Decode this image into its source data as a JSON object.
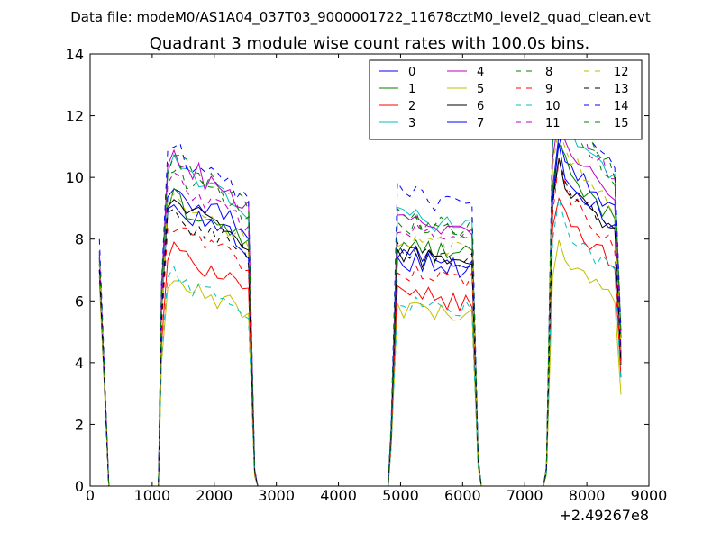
{
  "chart_data": {
    "type": "line",
    "suptitle": "Data file: modeM0/AS1A04_037T03_9000001722_11678cztM0_level2_quad_clean.evt",
    "title": "Quadrant 3 module wise count rates with 100.0s bins.",
    "xlabel": "",
    "ylabel": "",
    "x_offset_label": "+2.49267e8",
    "xlim": [
      0,
      9000
    ],
    "ylim": [
      0,
      14
    ],
    "xticks": [
      0,
      1000,
      2000,
      3000,
      4000,
      5000,
      6000,
      7000,
      8000,
      9000
    ],
    "xtick_labels": [
      "0",
      "1000",
      "2000",
      "3000",
      "4000",
      "5000",
      "6000",
      "7000",
      "8000",
      "9000"
    ],
    "yticks": [
      0,
      2,
      4,
      6,
      8,
      10,
      12,
      14
    ],
    "ytick_labels": [
      "0",
      "2",
      "4",
      "6",
      "8",
      "10",
      "12",
      "14"
    ],
    "legend_position": "top-right",
    "legend_columns": 4,
    "segments": [
      {
        "start": 150,
        "step": 100,
        "count": 2,
        "gap_before": false
      },
      {
        "start": 1150,
        "step": 100,
        "count": 16,
        "gap_before": true
      },
      {
        "start": 4850,
        "step": 100,
        "count": 15,
        "gap_before": true
      },
      {
        "start": 7350,
        "step": 100,
        "count": 13,
        "gap_before": true
      }
    ],
    "series": [
      {
        "name": "0",
        "color": "#0000ff",
        "dash": "solid",
        "levels": [
          7.5,
          9.5,
          7.6,
          10.8
        ]
      },
      {
        "name": "1",
        "color": "#008000",
        "dash": "solid",
        "levels": [
          7.3,
          9.0,
          7.8,
          10.5
        ]
      },
      {
        "name": "2",
        "color": "#ff0000",
        "dash": "solid",
        "levels": [
          6.8,
          7.4,
          6.2,
          8.8
        ]
      },
      {
        "name": "3",
        "color": "#00bfbf",
        "dash": "solid",
        "levels": [
          7.4,
          10.2,
          8.8,
          12.0
        ]
      },
      {
        "name": "4",
        "color": "#bf00bf",
        "dash": "solid",
        "levels": [
          7.6,
          10.4,
          8.6,
          11.2
        ]
      },
      {
        "name": "5",
        "color": "#bfbf00",
        "dash": "solid",
        "levels": [
          6.6,
          6.4,
          5.8,
          7.4
        ]
      },
      {
        "name": "6",
        "color": "#000000",
        "dash": "solid",
        "levels": [
          7.2,
          9.0,
          7.6,
          9.8
        ]
      },
      {
        "name": "7",
        "color": "#0000ff",
        "dash": "solid",
        "levels": [
          7.0,
          8.9,
          7.4,
          10.2
        ]
      },
      {
        "name": "8",
        "color": "#008000",
        "dash": "dashed",
        "levels": [
          7.4,
          10.0,
          8.6,
          12.0
        ]
      },
      {
        "name": "9",
        "color": "#ff0000",
        "dash": "dashed",
        "levels": [
          7.0,
          8.2,
          7.0,
          9.6
        ]
      },
      {
        "name": "10",
        "color": "#00bfbf",
        "dash": "dashed",
        "levels": [
          7.0,
          6.6,
          6.0,
          8.4
        ]
      },
      {
        "name": "11",
        "color": "#bf00bf",
        "dash": "dashed",
        "levels": [
          7.4,
          9.6,
          8.4,
          12.2
        ]
      },
      {
        "name": "12",
        "color": "#bfbf00",
        "dash": "dashed",
        "levels": [
          7.2,
          9.0,
          8.0,
          11.0
        ]
      },
      {
        "name": "13",
        "color": "#000000",
        "dash": "dashed",
        "levels": [
          7.0,
          8.6,
          7.6,
          10.0
        ]
      },
      {
        "name": "14",
        "color": "#0000ff",
        "dash": "dashed",
        "levels": [
          8.0,
          10.6,
          9.6,
          12.6
        ]
      },
      {
        "name": "15",
        "color": "#008000",
        "dash": "dashed",
        "levels": [
          7.6,
          10.4,
          8.8,
          12.4
        ]
      }
    ]
  }
}
